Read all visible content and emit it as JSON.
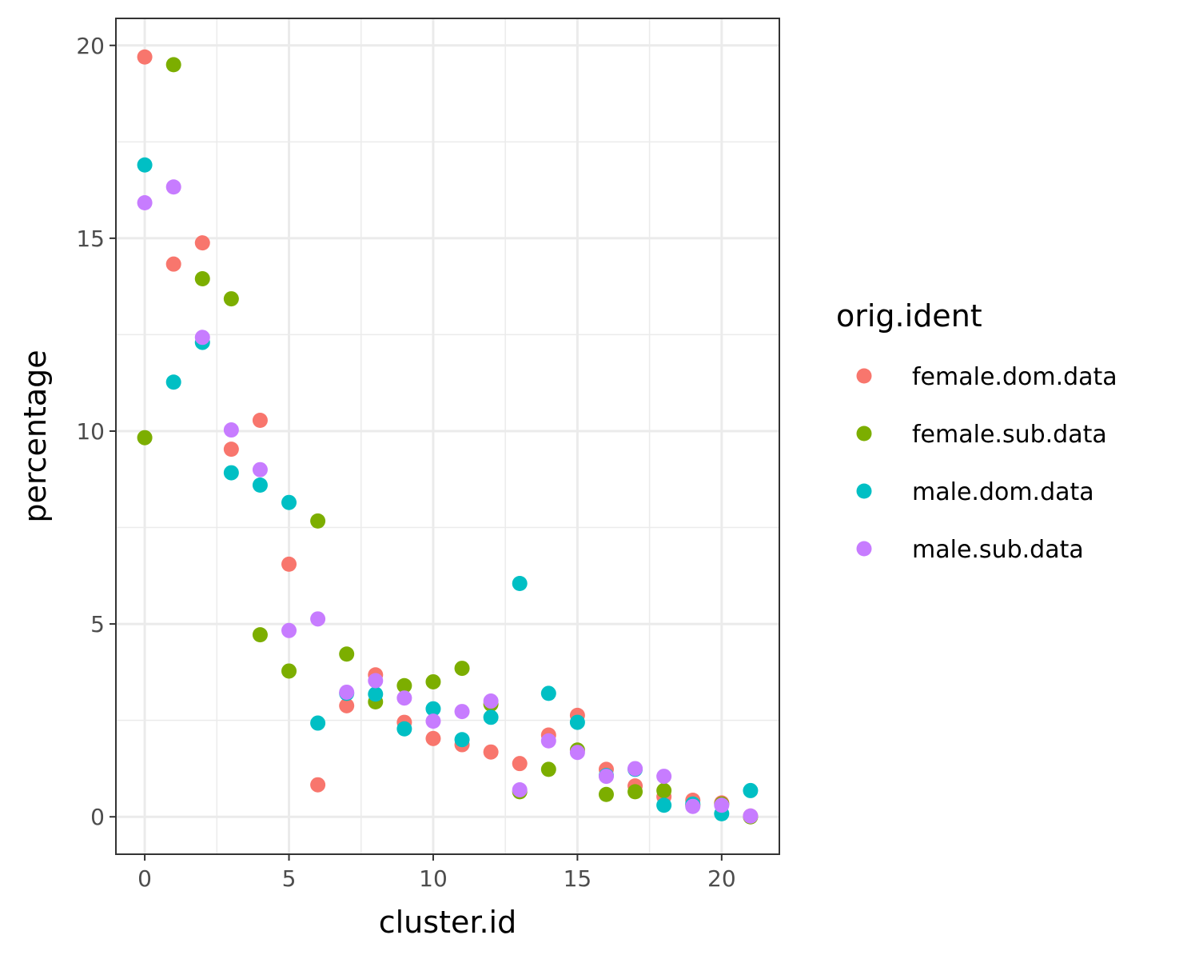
{
  "chart_data": {
    "type": "scatter",
    "xlabel": "cluster.id",
    "ylabel": "percentage",
    "xlim": [
      -1,
      22
    ],
    "ylim": [
      -0.97,
      20.7
    ],
    "x_ticks": [
      0,
      5,
      10,
      15,
      20
    ],
    "y_ticks": [
      0,
      5,
      10,
      15,
      20
    ],
    "x_minor": [
      2.5,
      7.5,
      12.5,
      17.5
    ],
    "y_minor": [
      2.5,
      7.5,
      12.5,
      17.5
    ],
    "grid": true,
    "legend_title": "orig.ident",
    "legend_position": "right",
    "series": [
      {
        "name": "female.dom.data",
        "color": "#F8766D",
        "points": [
          [
            0,
            19.7
          ],
          [
            1,
            14.33
          ],
          [
            2,
            14.88
          ],
          [
            3,
            9.53
          ],
          [
            4,
            10.28
          ],
          [
            5,
            6.55
          ],
          [
            6,
            0.83
          ],
          [
            7,
            2.88
          ],
          [
            8,
            3.68
          ],
          [
            9,
            2.45
          ],
          [
            10,
            2.03
          ],
          [
            11,
            1.87
          ],
          [
            12,
            1.68
          ],
          [
            13,
            1.38
          ],
          [
            14,
            2.12
          ],
          [
            15,
            2.63
          ],
          [
            16,
            1.23
          ],
          [
            17,
            0.8
          ],
          [
            18,
            0.52
          ],
          [
            19,
            0.43
          ],
          [
            20,
            0.36
          ],
          [
            21,
            0.02
          ]
        ]
      },
      {
        "name": "female.sub.data",
        "color": "#7CAE00",
        "points": [
          [
            0,
            9.83
          ],
          [
            1,
            19.5
          ],
          [
            2,
            13.95
          ],
          [
            3,
            13.43
          ],
          [
            4,
            4.72
          ],
          [
            5,
            3.78
          ],
          [
            6,
            7.67
          ],
          [
            7,
            4.22
          ],
          [
            8,
            2.98
          ],
          [
            9,
            3.4
          ],
          [
            10,
            3.5
          ],
          [
            11,
            3.85
          ],
          [
            12,
            2.92
          ],
          [
            13,
            0.65
          ],
          [
            14,
            1.23
          ],
          [
            15,
            1.73
          ],
          [
            16,
            0.58
          ],
          [
            17,
            0.65
          ],
          [
            18,
            0.68
          ],
          [
            19,
            0.3
          ],
          [
            20,
            0.33
          ],
          [
            21,
            0.0
          ]
        ]
      },
      {
        "name": "male.dom.data",
        "color": "#00BFC4",
        "points": [
          [
            0,
            16.9
          ],
          [
            1,
            11.27
          ],
          [
            2,
            12.3
          ],
          [
            3,
            8.92
          ],
          [
            4,
            8.6
          ],
          [
            5,
            8.15
          ],
          [
            6,
            2.43
          ],
          [
            7,
            3.2
          ],
          [
            8,
            3.18
          ],
          [
            9,
            2.28
          ],
          [
            10,
            2.8
          ],
          [
            11,
            2.0
          ],
          [
            12,
            2.58
          ],
          [
            13,
            6.05
          ],
          [
            14,
            3.2
          ],
          [
            15,
            2.45
          ],
          [
            16,
            1.07
          ],
          [
            17,
            1.23
          ],
          [
            18,
            0.3
          ],
          [
            19,
            0.33
          ],
          [
            20,
            0.08
          ],
          [
            21,
            0.68
          ]
        ]
      },
      {
        "name": "male.sub.data",
        "color": "#C77CFF",
        "points": [
          [
            0,
            15.92
          ],
          [
            1,
            16.33
          ],
          [
            2,
            12.43
          ],
          [
            3,
            10.03
          ],
          [
            4,
            9.0
          ],
          [
            5,
            4.83
          ],
          [
            6,
            5.13
          ],
          [
            7,
            3.23
          ],
          [
            8,
            3.53
          ],
          [
            9,
            3.08
          ],
          [
            10,
            2.48
          ],
          [
            11,
            2.73
          ],
          [
            12,
            3.0
          ],
          [
            13,
            0.7
          ],
          [
            14,
            1.97
          ],
          [
            15,
            1.67
          ],
          [
            16,
            1.05
          ],
          [
            17,
            1.25
          ],
          [
            18,
            1.05
          ],
          [
            19,
            0.27
          ],
          [
            20,
            0.3
          ],
          [
            21,
            0.02
          ]
        ]
      }
    ]
  }
}
